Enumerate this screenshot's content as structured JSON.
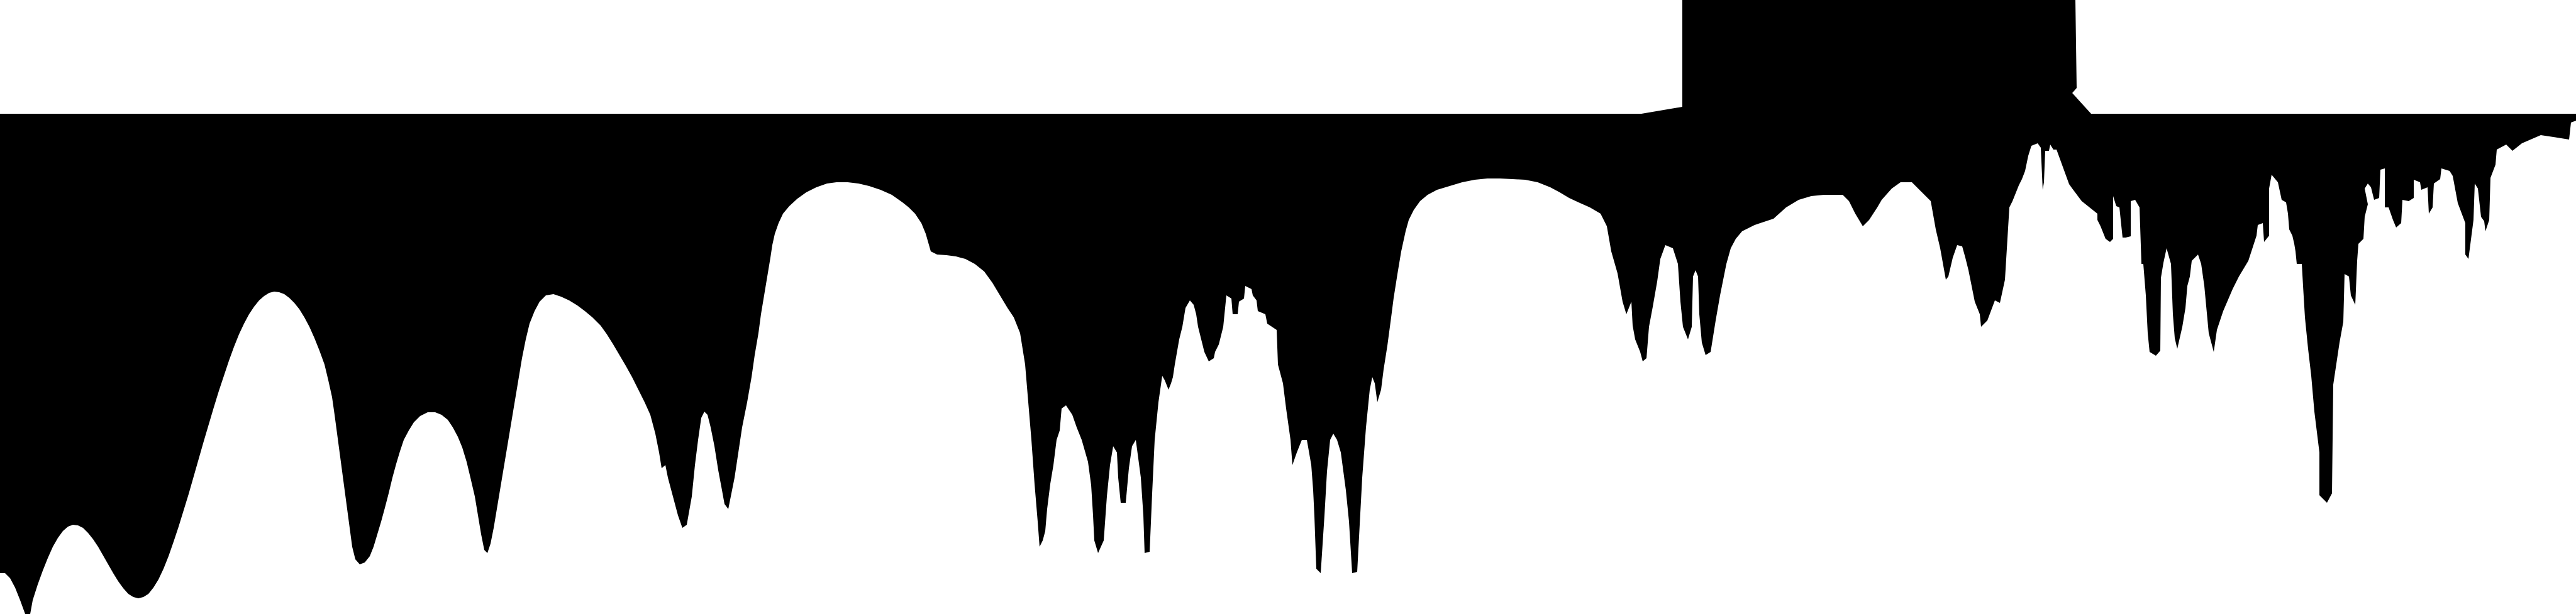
{
  "image": {
    "description_free": true,
    "foreground": "#000000",
    "background": "#ffffff"
  }
}
